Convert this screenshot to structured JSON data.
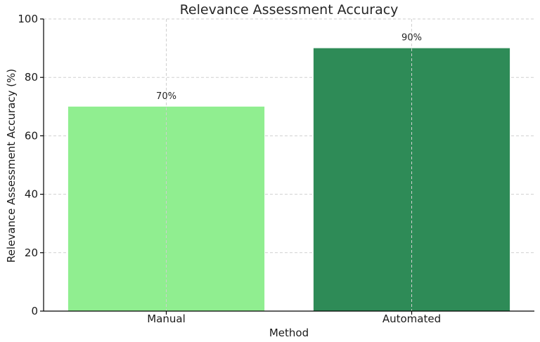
{
  "chart_data": {
    "type": "bar",
    "title": "Relevance Assessment Accuracy",
    "xlabel": "Method",
    "ylabel": "Relevance Assessment Accuracy (%)",
    "categories": [
      "Manual",
      "Automated"
    ],
    "values": [
      70,
      90
    ],
    "data_labels": [
      "70%",
      "90%"
    ],
    "colors": [
      "#90ee90",
      "#2e8b57"
    ],
    "ylim": [
      0,
      100
    ],
    "yticks": [
      0,
      20,
      40,
      60,
      80,
      100
    ],
    "grid": true
  }
}
